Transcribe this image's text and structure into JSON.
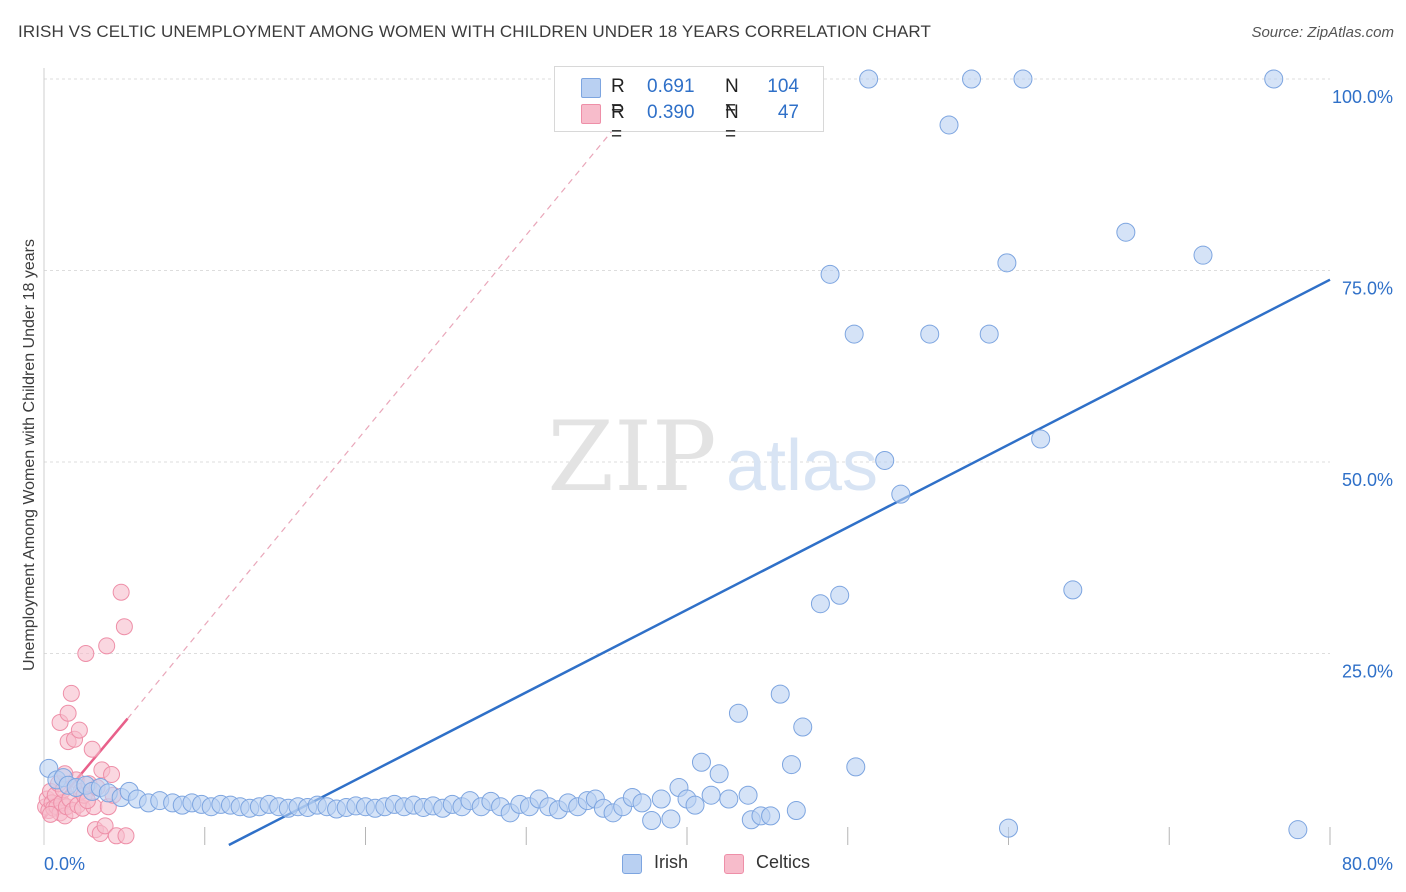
{
  "title": "IRISH VS CELTIC UNEMPLOYMENT AMONG WOMEN WITH CHILDREN UNDER 18 YEARS CORRELATION CHART",
  "source": "Source: ZipAtlas.com",
  "watermark": {
    "zip": "ZIP",
    "atlas": "atlas"
  },
  "colors": {
    "irish_fill": "#b9d0f2",
    "irish_stroke": "#7da5e0",
    "irish_line": "#2f70c8",
    "celtic_fill": "#f7bccb",
    "celtic_stroke": "#ee8fa8",
    "celtic_line": "#e8608a",
    "axis_value": "#2f70c8",
    "grid": "#dddddd"
  },
  "stats": {
    "irish": {
      "r_label": "R =",
      "r_value": "0.691",
      "n_label": "N =",
      "n_value": "104"
    },
    "celtics": {
      "r_label": "R =",
      "r_value": "0.390",
      "n_label": "N =",
      "n_value": "47"
    }
  },
  "legend": {
    "irish": "Irish",
    "celtics": "Celtics"
  },
  "chart_data": {
    "type": "scatter",
    "title": "IRISH VS CELTIC UNEMPLOYMENT AMONG WOMEN WITH CHILDREN UNDER 18 YEARS CORRELATION CHART",
    "xlabel": "",
    "ylabel": "Unemployment Among Women with Children Under 18 years",
    "xlim": [
      0,
      80
    ],
    "ylim": [
      0,
      100
    ],
    "x_ticks": [
      "0.0%",
      "80.0%"
    ],
    "y_ticks": [
      {
        "value": 25,
        "label": "25.0%"
      },
      {
        "value": 50,
        "label": "50.0%"
      },
      {
        "value": 75,
        "label": "75.0%"
      },
      {
        "value": 100,
        "label": "100.0%"
      }
    ],
    "grid": true,
    "series": [
      {
        "name": "Irish",
        "points": [
          [
            0.3,
            10.0
          ],
          [
            0.8,
            8.5
          ],
          [
            1.2,
            8.8
          ],
          [
            1.5,
            7.8
          ],
          [
            2.0,
            7.5
          ],
          [
            2.6,
            7.8
          ],
          [
            3.0,
            7.0
          ],
          [
            3.5,
            7.5
          ],
          [
            4.0,
            6.8
          ],
          [
            4.8,
            6.2
          ],
          [
            5.3,
            7.0
          ],
          [
            5.8,
            6.0
          ],
          [
            6.5,
            5.5
          ],
          [
            7.2,
            5.8
          ],
          [
            8.0,
            5.5
          ],
          [
            8.6,
            5.2
          ],
          [
            9.2,
            5.5
          ],
          [
            9.8,
            5.3
          ],
          [
            10.4,
            5.0
          ],
          [
            11.0,
            5.3
          ],
          [
            11.6,
            5.2
          ],
          [
            12.2,
            5.0
          ],
          [
            12.8,
            4.8
          ],
          [
            13.4,
            5.0
          ],
          [
            14.0,
            5.3
          ],
          [
            14.6,
            5.0
          ],
          [
            15.2,
            4.8
          ],
          [
            15.8,
            5.0
          ],
          [
            16.4,
            4.9
          ],
          [
            17.0,
            5.2
          ],
          [
            17.6,
            5.0
          ],
          [
            18.2,
            4.7
          ],
          [
            18.8,
            4.9
          ],
          [
            19.4,
            5.1
          ],
          [
            20.0,
            5.0
          ],
          [
            20.6,
            4.8
          ],
          [
            21.2,
            5.0
          ],
          [
            21.8,
            5.3
          ],
          [
            22.4,
            5.0
          ],
          [
            23.0,
            5.2
          ],
          [
            23.6,
            4.9
          ],
          [
            24.2,
            5.1
          ],
          [
            24.8,
            4.8
          ],
          [
            25.4,
            5.3
          ],
          [
            26.0,
            5.0
          ],
          [
            26.5,
            5.8
          ],
          [
            27.2,
            5.0
          ],
          [
            27.8,
            5.7
          ],
          [
            28.4,
            5.0
          ],
          [
            29.0,
            4.2
          ],
          [
            29.6,
            5.3
          ],
          [
            30.2,
            5.0
          ],
          [
            30.8,
            6.0
          ],
          [
            31.4,
            5.0
          ],
          [
            32.0,
            4.6
          ],
          [
            32.6,
            5.5
          ],
          [
            33.2,
            5.0
          ],
          [
            33.8,
            5.8
          ],
          [
            34.3,
            6.0
          ],
          [
            34.8,
            4.8
          ],
          [
            35.4,
            4.2
          ],
          [
            36.0,
            5.0
          ],
          [
            36.6,
            6.2
          ],
          [
            37.2,
            5.5
          ],
          [
            37.8,
            3.2
          ],
          [
            38.4,
            6.0
          ],
          [
            39.0,
            3.4
          ],
          [
            39.5,
            7.5
          ],
          [
            40.0,
            6.0
          ],
          [
            40.5,
            5.2
          ],
          [
            40.9,
            10.8
          ],
          [
            41.5,
            6.5
          ],
          [
            42.0,
            9.3
          ],
          [
            42.6,
            6.0
          ],
          [
            43.2,
            17.2
          ],
          [
            43.8,
            6.5
          ],
          [
            44.0,
            3.3
          ],
          [
            44.6,
            3.8
          ],
          [
            45.2,
            3.8
          ],
          [
            45.8,
            19.7
          ],
          [
            46.5,
            10.5
          ],
          [
            46.8,
            4.5
          ],
          [
            47.2,
            15.4
          ],
          [
            48.3,
            31.5
          ],
          [
            48.9,
            74.5
          ],
          [
            49.5,
            32.6
          ],
          [
            50.4,
            66.7
          ],
          [
            50.5,
            10.2
          ],
          [
            51.3,
            100
          ],
          [
            52.3,
            50.2
          ],
          [
            53.3,
            45.8
          ],
          [
            55.1,
            66.7
          ],
          [
            56.3,
            94.0
          ],
          [
            57.7,
            100
          ],
          [
            58.8,
            66.7
          ],
          [
            59.9,
            76.0
          ],
          [
            60.9,
            100
          ],
          [
            62.0,
            53.0
          ],
          [
            64.0,
            33.3
          ],
          [
            67.3,
            80.0
          ],
          [
            72.1,
            77.0
          ],
          [
            76.5,
            100
          ],
          [
            78.0,
            2.0
          ],
          [
            60.0,
            2.2
          ]
        ],
        "trendline": {
          "x": [
            11.5,
            80
          ],
          "y": [
            0,
            73.8
          ]
        }
      },
      {
        "name": "Celtics",
        "points": [
          [
            0.1,
            5.0
          ],
          [
            0.2,
            6.0
          ],
          [
            0.3,
            4.5
          ],
          [
            0.4,
            7.0
          ],
          [
            0.5,
            5.5
          ],
          [
            0.6,
            4.8
          ],
          [
            0.7,
            6.5
          ],
          [
            0.8,
            5.0
          ],
          [
            0.9,
            8.0
          ],
          [
            1.0,
            4.2
          ],
          [
            1.0,
            16.0
          ],
          [
            1.1,
            5.5
          ],
          [
            1.2,
            7.2
          ],
          [
            1.3,
            3.8
          ],
          [
            1.4,
            5.0
          ],
          [
            1.5,
            13.5
          ],
          [
            1.5,
            17.2
          ],
          [
            1.6,
            6.0
          ],
          [
            1.7,
            19.8
          ],
          [
            1.8,
            4.5
          ],
          [
            1.9,
            13.8
          ],
          [
            2.0,
            8.5
          ],
          [
            2.1,
            5.2
          ],
          [
            2.2,
            15.0
          ],
          [
            2.3,
            7.0
          ],
          [
            2.4,
            4.8
          ],
          [
            2.5,
            6.5
          ],
          [
            2.6,
            25.0
          ],
          [
            2.8,
            8.0
          ],
          [
            3.0,
            12.5
          ],
          [
            3.1,
            5.0
          ],
          [
            3.2,
            2.0
          ],
          [
            3.3,
            7.5
          ],
          [
            3.5,
            1.5
          ],
          [
            3.6,
            9.8
          ],
          [
            3.8,
            2.5
          ],
          [
            3.9,
            26.0
          ],
          [
            4.0,
            5.0
          ],
          [
            4.2,
            9.2
          ],
          [
            4.3,
            6.5
          ],
          [
            4.5,
            1.2
          ],
          [
            4.8,
            33.0
          ],
          [
            5.0,
            28.5
          ],
          [
            5.1,
            1.2
          ],
          [
            2.7,
            5.8
          ],
          [
            0.4,
            4.0
          ],
          [
            1.3,
            9.3
          ]
        ],
        "trendline": {
          "x": [
            0,
            5.2
          ],
          "y": [
            3.5,
            16.5
          ]
        },
        "dashed_extension": {
          "x": [
            5.2,
            38.0
          ],
          "y": [
            16.5,
            100
          ]
        }
      }
    ]
  }
}
